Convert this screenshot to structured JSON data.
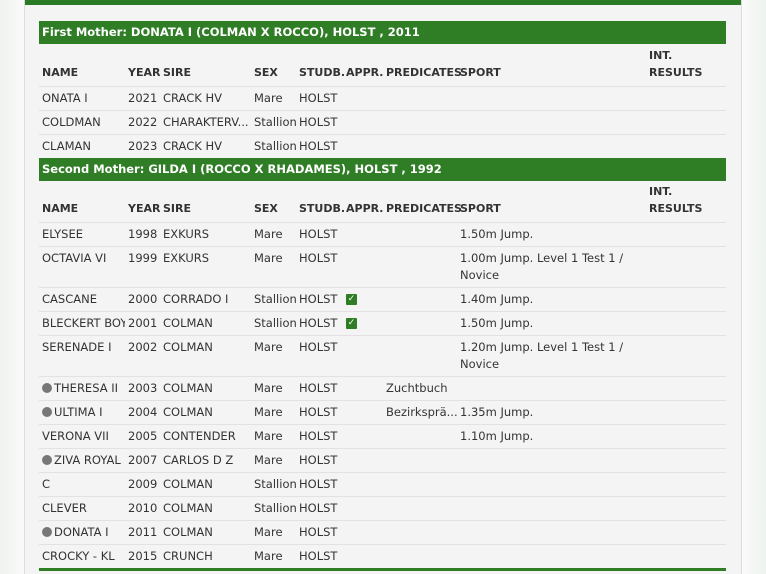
{
  "columns": [
    "NAME",
    "YEAR",
    "SIRE",
    "SEX",
    "STUDB.",
    "APPR.",
    "PREDICATES",
    "SPORT",
    "INT. RESULTS"
  ],
  "colors": {
    "accent": "#2f7d25"
  },
  "sections": [
    {
      "title": "First Mother: DONATA I (COLMAN X ROCCO), HOLST , 2011",
      "rows": [
        {
          "name": "ONATA I",
          "year": "2021",
          "sire": "CRACK HV",
          "sex": "Mare",
          "studb": "HOLST",
          "appr": false,
          "predicates": "",
          "sport": "",
          "int": "",
          "icon": false
        },
        {
          "name": "COLDMAN",
          "year": "2022",
          "sire": "CHARAKTERV...",
          "sex": "Stallion",
          "studb": "HOLST",
          "appr": false,
          "predicates": "",
          "sport": "",
          "int": "",
          "icon": false
        },
        {
          "name": "CLAMAN",
          "year": "2023",
          "sire": "CRACK HV",
          "sex": "Stallion",
          "studb": "HOLST",
          "appr": false,
          "predicates": "",
          "sport": "",
          "int": "",
          "icon": false
        }
      ]
    },
    {
      "title": "Second Mother: GILDA I (ROCCO X RHADAMES), HOLST , 1992",
      "rows": [
        {
          "name": "ELYSEE",
          "year": "1998",
          "sire": "EXKURS",
          "sex": "Mare",
          "studb": "HOLST",
          "appr": false,
          "predicates": "",
          "sport": "1.50m Jump.",
          "int": "",
          "icon": false
        },
        {
          "name": "OCTAVIA VI",
          "year": "1999",
          "sire": "EXKURS",
          "sex": "Mare",
          "studb": "HOLST",
          "appr": false,
          "predicates": "",
          "sport": "1.00m Jump. Level 1 Test 1 / Novice",
          "int": "",
          "icon": false
        },
        {
          "name": "CASCANE",
          "year": "2000",
          "sire": "CORRADO I",
          "sex": "Stallion",
          "studb": "HOLST",
          "appr": true,
          "predicates": "",
          "sport": "1.40m Jump.",
          "int": "",
          "icon": false
        },
        {
          "name": "BLECKERT BOY",
          "year": "2001",
          "sire": "COLMAN",
          "sex": "Stallion",
          "studb": "HOLST",
          "appr": true,
          "predicates": "",
          "sport": "1.50m Jump.",
          "int": "",
          "icon": false
        },
        {
          "name": "SERENADE I",
          "year": "2002",
          "sire": "COLMAN",
          "sex": "Mare",
          "studb": "HOLST",
          "appr": false,
          "predicates": "",
          "sport": "1.20m Jump. Level 1 Test 1 / Novice",
          "int": "",
          "icon": false
        },
        {
          "name": "THERESA II",
          "year": "2003",
          "sire": "COLMAN",
          "sex": "Mare",
          "studb": "HOLST",
          "appr": false,
          "predicates": "Zuchtbuch",
          "sport": "",
          "int": "",
          "icon": true
        },
        {
          "name": "ULTIMA I",
          "year": "2004",
          "sire": "COLMAN",
          "sex": "Mare",
          "studb": "HOLST",
          "appr": false,
          "predicates": "Bezirksprä...",
          "sport": "1.35m Jump.",
          "int": "",
          "icon": true
        },
        {
          "name": "VERONA VII",
          "year": "2005",
          "sire": "CONTENDER",
          "sex": "Mare",
          "studb": "HOLST",
          "appr": false,
          "predicates": "",
          "sport": "1.10m Jump.",
          "int": "",
          "icon": false
        },
        {
          "name": "ZIVA ROYAL",
          "year": "2007",
          "sire": "CARLOS D Z",
          "sex": "Mare",
          "studb": "HOLST",
          "appr": false,
          "predicates": "",
          "sport": "",
          "int": "",
          "icon": true
        },
        {
          "name": "C",
          "year": "2009",
          "sire": "COLMAN",
          "sex": "Stallion",
          "studb": "HOLST",
          "appr": false,
          "predicates": "",
          "sport": "",
          "int": "",
          "icon": false
        },
        {
          "name": "CLEVER",
          "year": "2010",
          "sire": "COLMAN",
          "sex": "Stallion",
          "studb": "HOLST",
          "appr": false,
          "predicates": "",
          "sport": "",
          "int": "",
          "icon": false
        },
        {
          "name": "DONATA I",
          "year": "2011",
          "sire": "COLMAN",
          "sex": "Mare",
          "studb": "HOLST",
          "appr": false,
          "predicates": "",
          "sport": "",
          "int": "",
          "icon": true
        },
        {
          "name": "CROCKY - KL",
          "year": "2015",
          "sire": "CRUNCH",
          "sex": "Mare",
          "studb": "HOLST",
          "appr": false,
          "predicates": "",
          "sport": "",
          "int": "",
          "icon": false
        }
      ]
    }
  ]
}
